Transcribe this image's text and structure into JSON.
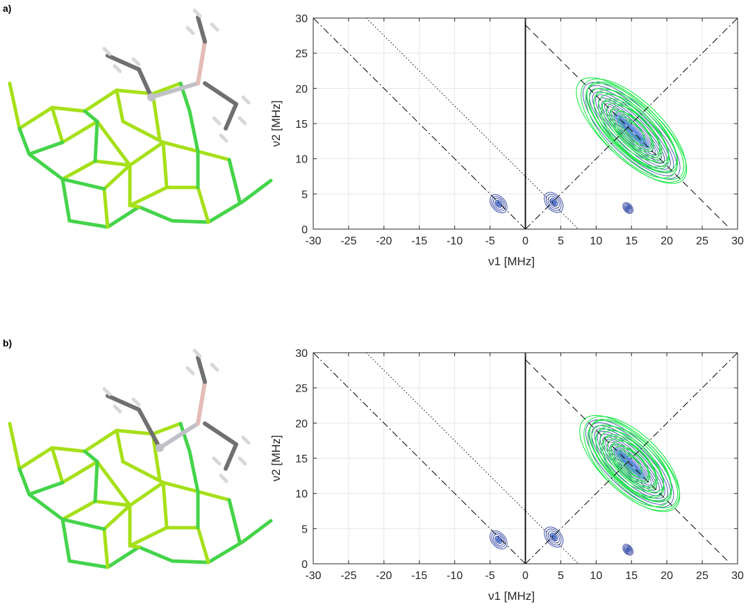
{
  "panels": [
    {
      "label": "a)"
    },
    {
      "label": "b)"
    }
  ],
  "colors": {
    "contour_blue": "#2b3f9e",
    "contour_fill_blue": "#3f74d8",
    "contour_green": "#1ee84a",
    "bond_green": "#44d44a",
    "bond_yellowgreen": "#a6e01a",
    "metal_gray": "#c0c0c8",
    "carbon_gray": "#707070",
    "hydrogen_gray": "#d8d8d8",
    "boron_pink": "#e3bcb8"
  },
  "chart_data": [
    {
      "type": "contour",
      "panel": "a)",
      "xlabel": "ν1 [MHz]",
      "ylabel": "ν2 [MHz]",
      "xlim": [
        -30,
        30
      ],
      "ylim": [
        0,
        30
      ],
      "xticks": [
        "-30",
        "-25",
        "-20",
        "-15",
        "-10",
        "-5",
        "0",
        "5",
        "10",
        "15",
        "20",
        "25",
        "30"
      ],
      "yticks": [
        "0",
        "5",
        "10",
        "15",
        "20",
        "25",
        "30"
      ],
      "grid": true,
      "reference_lines": [
        {
          "style": "dash-dot",
          "from": [
            0,
            0
          ],
          "to": [
            30,
            30
          ]
        },
        {
          "style": "dash-dot",
          "from": [
            0,
            0
          ],
          "to": [
            -30,
            30
          ]
        },
        {
          "style": "dashed",
          "from": [
            0,
            29
          ],
          "to": [
            29,
            0
          ]
        },
        {
          "style": "dotted",
          "from": [
            -22.5,
            30
          ],
          "to": [
            7.5,
            0
          ]
        },
        {
          "style": "solid",
          "from": [
            0,
            0
          ],
          "to": [
            0,
            30
          ]
        }
      ],
      "peaks": [
        {
          "center": [
            -3.8,
            3.6
          ],
          "series": "blue",
          "spread": 1.0
        },
        {
          "center": [
            4.0,
            3.8
          ],
          "series": "blue",
          "spread": 1.1
        },
        {
          "center": [
            14.5,
            14.5
          ],
          "series": "green",
          "extent": [
            [
              8,
              21
            ],
            [
              22,
              7
            ]
          ]
        },
        {
          "center": [
            14.5,
            3.0
          ],
          "series": "blue",
          "spread": 0.6
        }
      ]
    },
    {
      "type": "contour",
      "panel": "b)",
      "xlabel": "ν1 [MHz]",
      "ylabel": "ν2 [MHz]",
      "xlim": [
        -30,
        30
      ],
      "ylim": [
        0,
        30
      ],
      "xticks": [
        "-30",
        "-25",
        "-20",
        "-15",
        "-10",
        "-5",
        "0",
        "5",
        "10",
        "15",
        "20",
        "25",
        "30"
      ],
      "yticks": [
        "0",
        "5",
        "10",
        "15",
        "20",
        "25",
        "30"
      ],
      "grid": true,
      "reference_lines": [
        {
          "style": "dash-dot",
          "from": [
            0,
            0
          ],
          "to": [
            30,
            30
          ]
        },
        {
          "style": "dash-dot",
          "from": [
            0,
            0
          ],
          "to": [
            -30,
            30
          ]
        },
        {
          "style": "dashed",
          "from": [
            0,
            29
          ],
          "to": [
            29,
            0
          ]
        },
        {
          "style": "dotted",
          "from": [
            -22.5,
            30
          ],
          "to": [
            7.5,
            0
          ]
        },
        {
          "style": "solid",
          "from": [
            0,
            0
          ],
          "to": [
            0,
            30
          ]
        }
      ],
      "peaks": [
        {
          "center": [
            -3.8,
            3.4
          ],
          "series": "blue",
          "spread": 1.0
        },
        {
          "center": [
            4.0,
            3.8
          ],
          "series": "blue",
          "spread": 1.1
        },
        {
          "center": [
            14.5,
            14.0
          ],
          "series": "green",
          "extent": [
            [
              8.5,
              20.5
            ],
            [
              21,
              8
            ]
          ]
        },
        {
          "center": [
            14.5,
            2.0
          ],
          "series": "blue",
          "spread": 0.6
        }
      ]
    }
  ]
}
